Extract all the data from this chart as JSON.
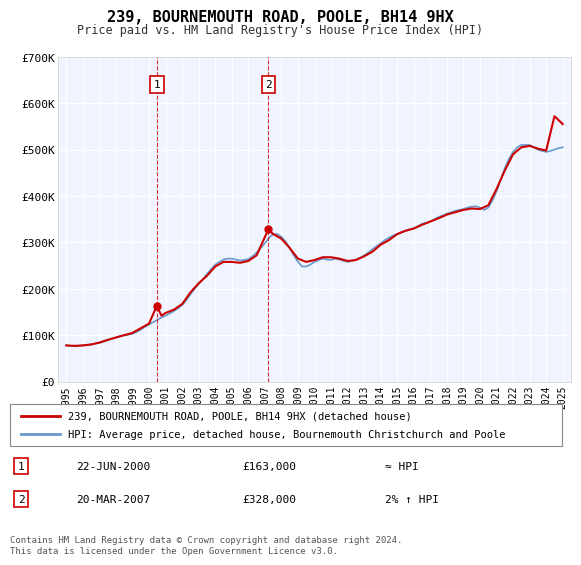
{
  "title": "239, BOURNEMOUTH ROAD, POOLE, BH14 9HX",
  "subtitle": "Price paid vs. HM Land Registry's House Price Index (HPI)",
  "legend_line1": "239, BOURNEMOUTH ROAD, POOLE, BH14 9HX (detached house)",
  "legend_line2": "HPI: Average price, detached house, Bournemouth Christchurch and Poole",
  "footer": "Contains HM Land Registry data © Crown copyright and database right 2024.\nThis data is licensed under the Open Government Licence v3.0.",
  "transactions": [
    {
      "num": 1,
      "date": "22-JUN-2000",
      "price": 163000,
      "x_year": 2000.47,
      "note": "≈ HPI"
    },
    {
      "num": 2,
      "date": "20-MAR-2007",
      "price": 328000,
      "x_year": 2007.21,
      "note": "2% ↑ HPI"
    }
  ],
  "ylim": [
    0,
    700000
  ],
  "yticks": [
    0,
    100000,
    200000,
    300000,
    400000,
    500000,
    600000,
    700000
  ],
  "ytick_labels": [
    "£0",
    "£100K",
    "£200K",
    "£300K",
    "£400K",
    "£500K",
    "£600K",
    "£700K"
  ],
  "xlim": [
    1994.5,
    2025.5
  ],
  "background_color": "#ffffff",
  "plot_bg_color": "#f0f4ff",
  "grid_color": "#ffffff",
  "red_line_color": "#cc0000",
  "blue_line_color": "#6699cc",
  "marker_box_color": "#cc0000",
  "hpi_data": {
    "years": [
      1995.0,
      1995.25,
      1995.5,
      1995.75,
      1996.0,
      1996.25,
      1996.5,
      1996.75,
      1997.0,
      1997.25,
      1997.5,
      1997.75,
      1998.0,
      1998.25,
      1998.5,
      1998.75,
      1999.0,
      1999.25,
      1999.5,
      1999.75,
      2000.0,
      2000.25,
      2000.5,
      2000.75,
      2001.0,
      2001.25,
      2001.5,
      2001.75,
      2002.0,
      2002.25,
      2002.5,
      2002.75,
      2003.0,
      2003.25,
      2003.5,
      2003.75,
      2004.0,
      2004.25,
      2004.5,
      2004.75,
      2005.0,
      2005.25,
      2005.5,
      2005.75,
      2006.0,
      2006.25,
      2006.5,
      2006.75,
      2007.0,
      2007.25,
      2007.5,
      2007.75,
      2008.0,
      2008.25,
      2008.5,
      2008.75,
      2009.0,
      2009.25,
      2009.5,
      2009.75,
      2010.0,
      2010.25,
      2010.5,
      2010.75,
      2011.0,
      2011.25,
      2011.5,
      2011.75,
      2012.0,
      2012.25,
      2012.5,
      2012.75,
      2013.0,
      2013.25,
      2013.5,
      2013.75,
      2014.0,
      2014.25,
      2014.5,
      2014.75,
      2015.0,
      2015.25,
      2015.5,
      2015.75,
      2016.0,
      2016.25,
      2016.5,
      2016.75,
      2017.0,
      2017.25,
      2017.5,
      2017.75,
      2018.0,
      2018.25,
      2018.5,
      2018.75,
      2019.0,
      2019.25,
      2019.5,
      2019.75,
      2020.0,
      2020.25,
      2020.5,
      2020.75,
      2021.0,
      2021.25,
      2021.5,
      2021.75,
      2022.0,
      2022.25,
      2022.5,
      2022.75,
      2023.0,
      2023.25,
      2023.5,
      2023.75,
      2024.0,
      2024.25,
      2024.5,
      2024.75,
      2025.0
    ],
    "values": [
      78000,
      77000,
      76500,
      77000,
      78000,
      79000,
      80000,
      82000,
      84000,
      86000,
      89000,
      92000,
      95000,
      98000,
      100000,
      101000,
      103000,
      107000,
      112000,
      118000,
      123000,
      128000,
      133000,
      138000,
      142000,
      147000,
      152000,
      158000,
      165000,
      175000,
      188000,
      200000,
      210000,
      220000,
      232000,
      242000,
      252000,
      258000,
      263000,
      265000,
      265000,
      263000,
      261000,
      262000,
      264000,
      270000,
      278000,
      288000,
      298000,
      310000,
      318000,
      318000,
      312000,
      302000,
      288000,
      272000,
      258000,
      248000,
      248000,
      252000,
      258000,
      262000,
      265000,
      263000,
      262000,
      265000,
      263000,
      260000,
      258000,
      260000,
      263000,
      267000,
      272000,
      278000,
      285000,
      292000,
      298000,
      305000,
      310000,
      315000,
      318000,
      322000,
      325000,
      328000,
      330000,
      335000,
      340000,
      342000,
      345000,
      350000,
      355000,
      358000,
      362000,
      365000,
      368000,
      370000,
      372000,
      375000,
      377000,
      378000,
      375000,
      370000,
      375000,
      390000,
      410000,
      435000,
      460000,
      480000,
      495000,
      505000,
      510000,
      510000,
      510000,
      505000,
      500000,
      497000,
      495000,
      497000,
      500000,
      503000,
      505000
    ]
  },
  "price_paid_data": {
    "years": [
      1995.0,
      1995.5,
      1996.0,
      1996.5,
      1997.0,
      1997.5,
      1998.0,
      1998.5,
      1999.0,
      1999.5,
      2000.0,
      2000.47,
      2000.75,
      2001.0,
      2001.5,
      2002.0,
      2002.5,
      2003.0,
      2003.5,
      2004.0,
      2004.5,
      2005.0,
      2005.5,
      2006.0,
      2006.5,
      2007.21,
      2007.5,
      2008.0,
      2008.5,
      2009.0,
      2009.5,
      2010.0,
      2010.5,
      2011.0,
      2011.5,
      2012.0,
      2012.5,
      2013.0,
      2013.5,
      2014.0,
      2014.5,
      2015.0,
      2015.5,
      2016.0,
      2016.5,
      2017.0,
      2017.5,
      2018.0,
      2018.5,
      2019.0,
      2019.5,
      2020.0,
      2020.5,
      2021.0,
      2021.5,
      2022.0,
      2022.5,
      2023.0,
      2023.5,
      2024.0,
      2024.5,
      2025.0
    ],
    "values": [
      78000,
      77000,
      78000,
      80000,
      84000,
      90000,
      95000,
      100000,
      105000,
      115000,
      125000,
      163000,
      142000,
      148000,
      155000,
      167000,
      192000,
      212000,
      228000,
      248000,
      258000,
      258000,
      256000,
      260000,
      272000,
      328000,
      318000,
      308000,
      288000,
      265000,
      258000,
      262000,
      268000,
      268000,
      265000,
      260000,
      262000,
      270000,
      280000,
      295000,
      305000,
      318000,
      325000,
      330000,
      338000,
      345000,
      352000,
      360000,
      365000,
      370000,
      373000,
      372000,
      380000,
      415000,
      455000,
      490000,
      505000,
      508000,
      502000,
      498000,
      572000,
      555000
    ]
  }
}
